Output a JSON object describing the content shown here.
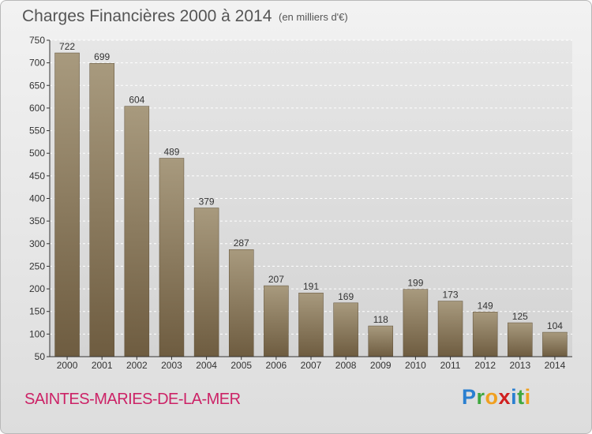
{
  "title": "Charges Financières 2000 à 2014",
  "subtitle": "(en milliers d'€)",
  "place": "SAINTES-MARIES-DE-LA-MER",
  "brand": {
    "letters": [
      "P",
      "r",
      "o",
      "x",
      "i",
      "t",
      "i"
    ],
    "colors": [
      "#2a7fd0",
      "#3fa83f",
      "#f0a020",
      "#d02020",
      "#2a7fd0",
      "#3fa83f",
      "#f0a020"
    ]
  },
  "colors": {
    "bar_top": "#a89a7e",
    "bar_bottom": "#6e5c40",
    "axis": "#333333",
    "grid": "#ffffff"
  },
  "chart_data": {
    "type": "bar",
    "categories": [
      "2000",
      "2001",
      "2002",
      "2003",
      "2004",
      "2005",
      "2006",
      "2007",
      "2008",
      "2009",
      "2010",
      "2011",
      "2012",
      "2013",
      "2014"
    ],
    "values": [
      722,
      699,
      604,
      489,
      379,
      287,
      207,
      191,
      169,
      118,
      199,
      173,
      149,
      125,
      104
    ],
    "ylim": [
      50,
      750
    ],
    "yticks": [
      50,
      100,
      150,
      200,
      250,
      300,
      350,
      400,
      450,
      500,
      550,
      600,
      650,
      700,
      750
    ],
    "grid": true,
    "legend": "none"
  }
}
